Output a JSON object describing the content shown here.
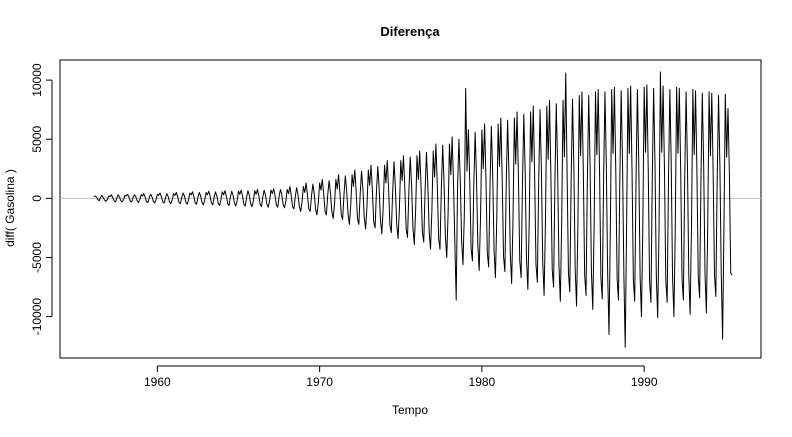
{
  "chart_data": {
    "type": "line",
    "title": "Diferença",
    "xlabel": "Tempo",
    "ylabel": "diff( Gasolina )",
    "xlim": [
      1954.0,
      1997.2
    ],
    "ylim": [
      -13500,
      11700
    ],
    "x_ticks": [
      1960,
      1970,
      1980,
      1990
    ],
    "x_tick_labels": [
      "1960",
      "1970",
      "1980",
      "1990"
    ],
    "y_ticks": [
      -10000,
      -5000,
      0,
      5000,
      10000
    ],
    "y_tick_labels": [
      "-10000",
      "-5000",
      "0",
      "5000",
      "10000"
    ],
    "reference_line": {
      "y": 0,
      "color": "#bdbdbd"
    },
    "line_color": "#000000",
    "grid": false,
    "series": [
      {
        "x_start": 1956.0833,
        "x_step": 0.0833333,
        "values": [
          150,
          200,
          100,
          -100,
          -200,
          100,
          250,
          50,
          -150,
          -250,
          -100,
          200,
          150,
          300,
          50,
          -200,
          -300,
          0,
          300,
          100,
          -200,
          -300,
          -100,
          250,
          200,
          350,
          100,
          -250,
          -300,
          50,
          300,
          150,
          -200,
          -350,
          -100,
          300,
          200,
          400,
          100,
          -300,
          -350,
          50,
          350,
          150,
          -250,
          -400,
          -100,
          350,
          250,
          450,
          150,
          -300,
          -400,
          50,
          400,
          150,
          -300,
          -450,
          -100,
          400,
          250,
          500,
          150,
          -350,
          -450,
          50,
          450,
          200,
          -300,
          -500,
          -150,
          450,
          300,
          550,
          150,
          -400,
          -500,
          100,
          500,
          200,
          -350,
          -550,
          -150,
          500,
          300,
          600,
          200,
          -400,
          -550,
          100,
          550,
          200,
          -400,
          -600,
          -150,
          550,
          300,
          650,
          200,
          -450,
          -600,
          100,
          600,
          250,
          -400,
          -650,
          -200,
          600,
          350,
          700,
          200,
          -500,
          -650,
          100,
          650,
          250,
          -450,
          -700,
          -200,
          650,
          350,
          750,
          250,
          -500,
          -700,
          150,
          700,
          250,
          -500,
          -750,
          -200,
          700,
          400,
          800,
          250,
          -550,
          -750,
          150,
          750,
          300,
          -500,
          -800,
          -250,
          750,
          400,
          1000,
          250,
          -700,
          -900,
          150,
          900,
          300,
          -700,
          -1100,
          -300,
          1000,
          500,
          1300,
          300,
          -900,
          -1100,
          200,
          1200,
          400,
          -900,
          -1400,
          -400,
          1300,
          700,
          1600,
          400,
          -1100,
          -1400,
          300,
          1500,
          500,
          -1100,
          -1700,
          -500,
          1600,
          800,
          2000,
          500,
          -1400,
          -1800,
          300,
          1900,
          600,
          -1300,
          -2200,
          -600,
          2000,
          1000,
          2400,
          600,
          -1700,
          -2200,
          400,
          2300,
          800,
          -1600,
          -2600,
          -700,
          2400,
          1100,
          2800,
          700,
          -2000,
          -2500,
          500,
          2700,
          900,
          -1900,
          -3000,
          -800,
          2800,
          1300,
          3200,
          800,
          -2300,
          -2900,
          500,
          3100,
          1000,
          -2200,
          -3400,
          -900,
          3200,
          1500,
          3600,
          900,
          -2600,
          -3300,
          600,
          3500,
          1100,
          -2500,
          -3900,
          -1000,
          3600,
          1600,
          4000,
          1000,
          -2900,
          -3700,
          700,
          3900,
          1200,
          -2800,
          -4300,
          -1100,
          4000,
          1800,
          4600,
          1200,
          -3400,
          -4300,
          800,
          4500,
          1400,
          -3200,
          -5000,
          -1300,
          4600,
          2000,
          5200,
          1300,
          -3800,
          -8600,
          900,
          5000,
          1600,
          -3600,
          -5600,
          -1400,
          9300,
          2300,
          5800,
          1500,
          -4200,
          -5300,
          1000,
          5600,
          1800,
          -4000,
          -6100,
          -1500,
          5800,
          2500,
          6300,
          1600,
          -4600,
          -5800,
          1100,
          6100,
          1900,
          -4400,
          -6700,
          -1700,
          6300,
          2700,
          6800,
          1700,
          -4900,
          -6200,
          1200,
          6600,
          2100,
          -4700,
          -7200,
          -1800,
          6800,
          2900,
          7300,
          1900,
          -5300,
          -6700,
          1300,
          7100,
          2200,
          -5100,
          -7700,
          -1900,
          7300,
          3100,
          7800,
          2000,
          -5600,
          -7100,
          1400,
          7500,
          2400,
          -5400,
          -8200,
          -2000,
          7800,
          3300,
          8300,
          2100,
          -6000,
          -7500,
          1500,
          8000,
          2500,
          -5700,
          -8700,
          -2100,
          8300,
          3500,
          10600,
          2200,
          -6300,
          -7900,
          1500,
          8400,
          2700,
          -6000,
          -9100,
          -2200,
          8700,
          3600,
          9000,
          2300,
          -6500,
          -8200,
          1600,
          8700,
          2800,
          -6200,
          -9400,
          -2300,
          9000,
          3700,
          9200,
          2400,
          -6700,
          -8500,
          1600,
          9000,
          2900,
          -6400,
          -11500,
          -2400,
          9200,
          3800,
          9400,
          2400,
          -6800,
          -8600,
          1700,
          9100,
          2900,
          -6500,
          -12600,
          -2400,
          9300,
          3800,
          9500,
          2500,
          -6900,
          -8700,
          1700,
          9200,
          3000,
          -6600,
          -10000,
          -2500,
          9400,
          3900,
          9600,
          2500,
          -7000,
          -8800,
          1700,
          9300,
          3000,
          -6700,
          -10100,
          -2500,
          10700,
          3900,
          9500,
          2500,
          -6900,
          -8800,
          1700,
          9200,
          3000,
          -6700,
          -10000,
          -2500,
          9400,
          3800,
          9300,
          2400,
          -6800,
          -8600,
          1700,
          9000,
          2900,
          -6500,
          -9800,
          -2400,
          9200,
          3700,
          9100,
          2400,
          -6600,
          -8400,
          1600,
          8900,
          2800,
          -6400,
          -9700,
          -2400,
          9000,
          3600,
          8900,
          2300,
          -6500,
          -8300,
          1600,
          8700,
          2800,
          -6300,
          -11900,
          -2300,
          8800,
          3500,
          7600,
          2200,
          -6300,
          -6500
        ]
      }
    ]
  }
}
